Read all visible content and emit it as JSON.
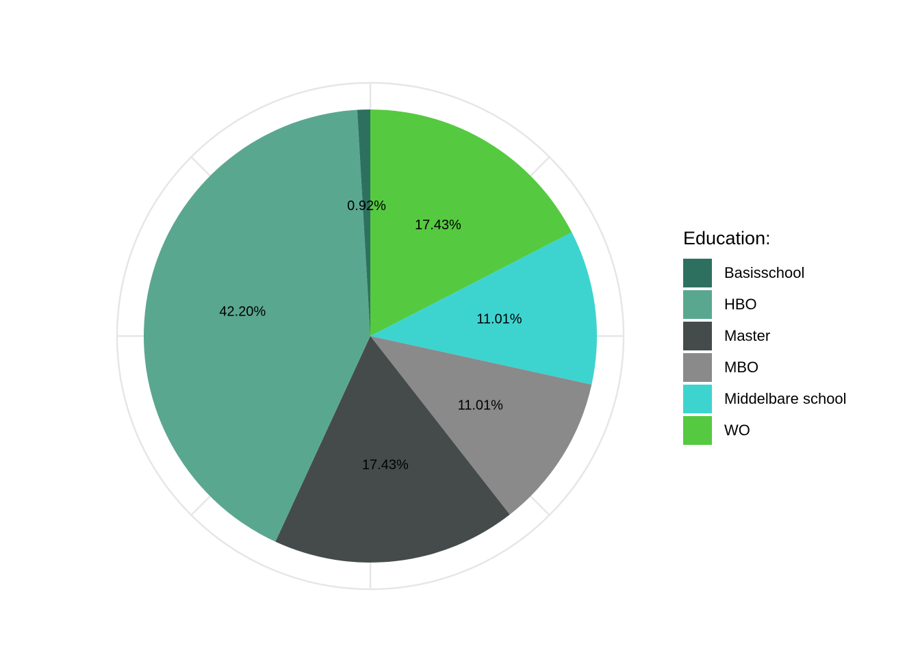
{
  "chart_data": {
    "type": "pie",
    "title": "",
    "legend": {
      "title": "Education:",
      "position": "right"
    },
    "categories": [
      "Basisschool",
      "HBO",
      "Master",
      "MBO",
      "Middelbare school",
      "WO"
    ],
    "values": [
      0.92,
      42.2,
      17.43,
      11.01,
      11.01,
      17.43
    ],
    "labels": [
      "0.92%",
      "42.20%",
      "17.43%",
      "11.01%",
      "11.01%",
      "17.43%"
    ],
    "colors": [
      "#2e7060",
      "#5aa790",
      "#454b4b",
      "#8a8a8a",
      "#3dd4d0",
      "#55c940"
    ],
    "polar_grid": true,
    "stacking_order": [
      "WO",
      "Middelbare school",
      "MBO",
      "Master",
      "HBO",
      "Basisschool"
    ],
    "direction": "clockwise",
    "start_angle": "12 o'clock"
  }
}
